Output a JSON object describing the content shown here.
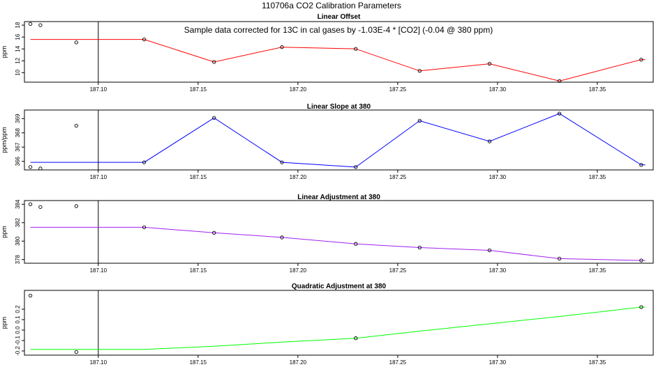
{
  "page": {
    "title": "110706a   CO2 Calibration Parameters"
  },
  "colors": {
    "axis": "#000000",
    "point": "#000000"
  },
  "chart_data": [
    {
      "type": "line",
      "title": "Linear Offset",
      "subtitle": "Sample data corrected for 13C in cal gases by -1.03E-4 * [CO2] (-0.04 @ 380 ppm)",
      "xlabel": "",
      "ylabel": "ppm",
      "xlim": [
        187.063,
        187.378
      ],
      "ylim": [
        8.4,
        18.6
      ],
      "y_ticks": [
        10,
        12,
        14,
        16,
        18
      ],
      "x_ticks": [
        187.1,
        187.15,
        187.2,
        187.25,
        187.3,
        187.35
      ],
      "x_tick_labels": [
        "187.10",
        "187.15",
        "187.20",
        "187.25",
        "187.30",
        "187.35"
      ],
      "vline_x": 187.1,
      "grid": false,
      "series": [
        {
          "color": "#ff0000",
          "x": [
            187.066,
            187.123,
            187.158,
            187.192,
            187.229,
            187.261,
            187.296,
            187.331,
            187.372,
            187.374
          ],
          "y": [
            15.6,
            15.6,
            11.8,
            14.3,
            14.0,
            10.3,
            11.5,
            8.6,
            12.2,
            12.2
          ]
        }
      ],
      "points": {
        "x": [
          187.066,
          187.071,
          187.089,
          187.123,
          187.158,
          187.192,
          187.229,
          187.261,
          187.296,
          187.331,
          187.372
        ],
        "y": [
          18.2,
          18.0,
          15.1,
          15.6,
          11.8,
          14.3,
          14.0,
          10.3,
          11.5,
          8.6,
          12.2
        ]
      }
    },
    {
      "type": "line",
      "title": "Linear Slope at 380",
      "xlabel": "",
      "ylabel": "ppm/ppm",
      "xlim": [
        187.063,
        187.378
      ],
      "ylim": [
        365.4,
        369.6
      ],
      "y_ticks": [
        366,
        367,
        368,
        369
      ],
      "x_ticks": [
        187.1,
        187.15,
        187.2,
        187.25,
        187.3,
        187.35
      ],
      "x_tick_labels": [
        "187.10",
        "187.15",
        "187.20",
        "187.25",
        "187.30",
        "187.35"
      ],
      "vline_x": 187.1,
      "grid": false,
      "series": [
        {
          "color": "#0000ff",
          "x": [
            187.066,
            187.123,
            187.158,
            187.192,
            187.229,
            187.261,
            187.296,
            187.331,
            187.372,
            187.374
          ],
          "y": [
            365.93,
            365.93,
            369.05,
            365.93,
            365.6,
            368.85,
            367.4,
            369.35,
            365.75,
            365.75
          ]
        }
      ],
      "points": {
        "x": [
          187.066,
          187.071,
          187.089,
          187.123,
          187.158,
          187.192,
          187.229,
          187.261,
          187.296,
          187.331,
          187.372
        ],
        "y": [
          365.6,
          365.5,
          368.5,
          365.93,
          369.05,
          365.93,
          365.6,
          368.85,
          367.4,
          369.35,
          365.75
        ]
      }
    },
    {
      "type": "line",
      "title": "Linear Adjustment at 380",
      "xlabel": "",
      "ylabel": "ppm",
      "xlim": [
        187.063,
        187.378
      ],
      "ylim": [
        377.6,
        384.4
      ],
      "y_ticks": [
        378,
        380,
        382,
        384
      ],
      "x_ticks": [
        187.1,
        187.15,
        187.2,
        187.25,
        187.3,
        187.35
      ],
      "x_tick_labels": [
        "187.10",
        "187.15",
        "187.20",
        "187.25",
        "187.30",
        "187.35"
      ],
      "vline_x": 187.1,
      "grid": false,
      "series": [
        {
          "color": "#a020f0",
          "x": [
            187.066,
            187.123,
            187.158,
            187.192,
            187.229,
            187.261,
            187.296,
            187.331,
            187.372,
            187.374
          ],
          "y": [
            381.5,
            381.5,
            380.9,
            380.4,
            379.7,
            379.3,
            379.0,
            378.1,
            377.9,
            377.9
          ]
        }
      ],
      "points": {
        "x": [
          187.066,
          187.071,
          187.089,
          187.123,
          187.158,
          187.192,
          187.229,
          187.261,
          187.296,
          187.331,
          187.372
        ],
        "y": [
          384.0,
          383.7,
          383.8,
          381.5,
          380.9,
          380.4,
          379.7,
          379.3,
          379.0,
          378.1,
          377.9
        ]
      }
    },
    {
      "type": "line",
      "title": "Quadratic Adjustment at 380",
      "xlabel": "",
      "ylabel": "ppm",
      "xlim": [
        187.063,
        187.378
      ],
      "ylim": [
        -0.24,
        0.38
      ],
      "y_ticks": [
        -0.2,
        -0.1,
        0.0,
        0.1,
        0.2
      ],
      "y_tick_labels": [
        "-0.2",
        "-0.1",
        "0.0",
        "0.1",
        "0.2"
      ],
      "x_ticks": [
        187.1,
        187.15,
        187.2,
        187.25,
        187.3,
        187.35
      ],
      "x_tick_labels": [
        "187.10",
        "187.15",
        "187.20",
        "187.25",
        "187.30",
        "187.35"
      ],
      "vline_x": 187.1,
      "grid": false,
      "series": [
        {
          "color": "#00ff00",
          "x": [
            187.066,
            187.123,
            187.158,
            187.192,
            187.229,
            187.261,
            187.296,
            187.331,
            187.372,
            187.374
          ],
          "y": [
            -0.185,
            -0.185,
            -0.155,
            -0.115,
            -0.078,
            -0.01,
            0.06,
            0.13,
            0.22,
            0.22
          ]
        }
      ],
      "points": {
        "x": [
          187.066,
          187.089,
          187.229,
          187.372
        ],
        "y": [
          0.33,
          -0.21,
          -0.078,
          0.22
        ]
      }
    }
  ]
}
